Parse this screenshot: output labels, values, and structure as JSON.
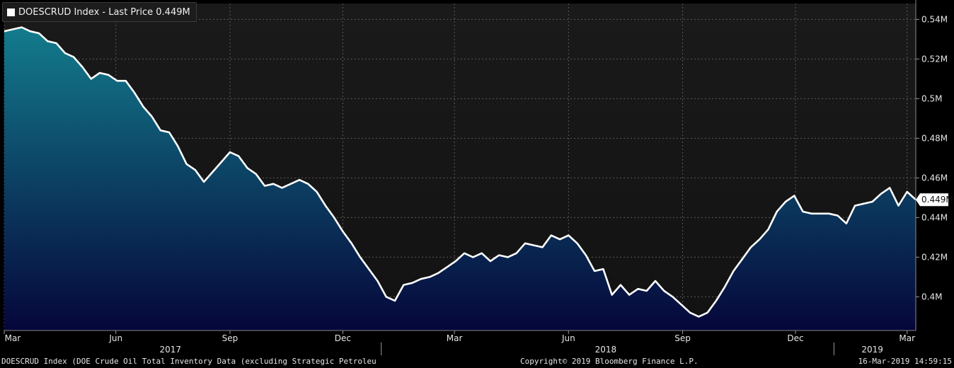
{
  "legend": {
    "text": "DOESCRUD Index - Last Price 0.449M",
    "color": "#ffffff"
  },
  "footer": {
    "description": "DOESCRUD Index (DOE Crude Oil Total Inventory Data (excluding Strategic Petroleu",
    "copyright": "Copyright© 2019 Bloomberg Finance L.P.",
    "timestamp": "16-Mar-2019 14:59:15"
  },
  "chart_data": {
    "type": "area",
    "title": "DOESCRUD Index - Last Price 0.449M",
    "unit": "M",
    "ylim": [
      0.383,
      0.548
    ],
    "yticks": [
      0.4,
      0.42,
      0.44,
      0.46,
      0.48,
      0.5,
      0.52,
      0.54
    ],
    "ytick_labels": [
      "0.4M",
      "0.42M",
      "0.44M",
      "0.46M",
      "0.48M",
      "0.5M",
      "0.52M",
      "0.54M"
    ],
    "xlim": [
      "2017-03-03",
      "2019-03-08"
    ],
    "xticks": [
      {
        "date": "2017-03-01",
        "label": "Mar"
      },
      {
        "date": "2017-06-01",
        "label": "Jun"
      },
      {
        "date": "2017-09-01",
        "label": "Sep"
      },
      {
        "date": "2017-12-01",
        "label": "Dec"
      },
      {
        "date": "2018-03-01",
        "label": "Mar"
      },
      {
        "date": "2018-06-01",
        "label": "Jun"
      },
      {
        "date": "2018-09-01",
        "label": "Sep"
      },
      {
        "date": "2018-12-01",
        "label": "Dec"
      },
      {
        "date": "2019-03-01",
        "label": "Mar"
      }
    ],
    "years": [
      {
        "label": "2017",
        "center": "2017-07-15"
      },
      {
        "label": "2018",
        "center": "2018-07-01"
      },
      {
        "label": "2019",
        "center": "2019-02-01"
      }
    ],
    "year_separators": [
      "2018-01-01",
      "2019-01-01"
    ],
    "last_value": 0.449,
    "last_value_label": "0.449M",
    "grid": true,
    "colors": {
      "line": "#ffffff",
      "fill_top": "#137c8c",
      "fill_bottom": "#05063a",
      "background": "#161616",
      "grid": "#5a5a5a"
    },
    "series": [
      {
        "x": [
          "2017-03-03",
          "2017-03-10",
          "2017-03-17",
          "2017-03-24",
          "2017-03-31",
          "2017-04-07",
          "2017-04-14",
          "2017-04-21",
          "2017-04-28",
          "2017-05-05",
          "2017-05-12",
          "2017-05-19",
          "2017-05-26",
          "2017-06-02",
          "2017-06-09",
          "2017-06-16",
          "2017-06-23",
          "2017-06-30",
          "2017-07-07",
          "2017-07-14",
          "2017-07-21",
          "2017-07-28",
          "2017-08-04",
          "2017-08-11",
          "2017-08-18",
          "2017-08-25",
          "2017-09-01",
          "2017-09-08",
          "2017-09-15",
          "2017-09-22",
          "2017-09-29",
          "2017-10-06",
          "2017-10-13",
          "2017-10-20",
          "2017-10-27",
          "2017-11-03",
          "2017-11-10",
          "2017-11-17",
          "2017-11-24",
          "2017-12-01",
          "2017-12-08",
          "2017-12-15",
          "2017-12-22",
          "2017-12-29",
          "2018-01-05",
          "2018-01-12",
          "2018-01-19",
          "2018-01-26",
          "2018-02-02",
          "2018-02-09",
          "2018-02-16",
          "2018-02-23",
          "2018-03-02",
          "2018-03-09",
          "2018-03-16",
          "2018-03-23",
          "2018-03-30",
          "2018-04-06",
          "2018-04-13",
          "2018-04-20",
          "2018-04-27",
          "2018-05-04",
          "2018-05-11",
          "2018-05-18",
          "2018-05-25",
          "2018-06-01",
          "2018-06-08",
          "2018-06-15",
          "2018-06-22",
          "2018-06-29",
          "2018-07-06",
          "2018-07-13",
          "2018-07-20",
          "2018-07-27",
          "2018-08-03",
          "2018-08-10",
          "2018-08-17",
          "2018-08-24",
          "2018-08-31",
          "2018-09-07",
          "2018-09-14",
          "2018-09-21",
          "2018-09-28",
          "2018-10-05",
          "2018-10-12",
          "2018-10-19",
          "2018-10-26",
          "2018-11-02",
          "2018-11-09",
          "2018-11-16",
          "2018-11-23",
          "2018-11-30",
          "2018-12-07",
          "2018-12-14",
          "2018-12-21",
          "2018-12-28",
          "2019-01-04",
          "2019-01-11",
          "2019-01-18",
          "2019-01-25",
          "2019-02-01",
          "2019-02-08",
          "2019-02-15",
          "2019-02-22",
          "2019-03-01",
          "2019-03-08"
        ],
        "y": [
          0.534,
          0.535,
          0.536,
          0.534,
          0.533,
          0.529,
          0.528,
          0.523,
          0.521,
          0.516,
          0.51,
          0.513,
          0.512,
          0.509,
          0.509,
          0.503,
          0.496,
          0.491,
          0.484,
          0.483,
          0.476,
          0.467,
          0.464,
          0.458,
          0.463,
          0.468,
          0.473,
          0.471,
          0.465,
          0.462,
          0.456,
          0.457,
          0.455,
          0.457,
          0.459,
          0.457,
          0.453,
          0.446,
          0.44,
          0.433,
          0.427,
          0.42,
          0.414,
          0.408,
          0.4,
          0.398,
          0.406,
          0.407,
          0.409,
          0.41,
          0.412,
          0.415,
          0.418,
          0.422,
          0.42,
          0.422,
          0.418,
          0.421,
          0.42,
          0.422,
          0.427,
          0.426,
          0.425,
          0.431,
          0.429,
          0.431,
          0.427,
          0.421,
          0.413,
          0.414,
          0.401,
          0.406,
          0.401,
          0.404,
          0.403,
          0.408,
          0.403,
          0.4,
          0.396,
          0.392,
          0.39,
          0.392,
          0.398,
          0.405,
          0.413,
          0.419,
          0.425,
          0.429,
          0.434,
          0.443,
          0.448,
          0.451,
          0.443,
          0.442,
          0.442,
          0.442,
          0.441,
          0.437,
          0.446,
          0.447,
          0.448,
          0.452,
          0.455,
          0.446,
          0.453,
          0.449
        ]
      }
    ]
  }
}
